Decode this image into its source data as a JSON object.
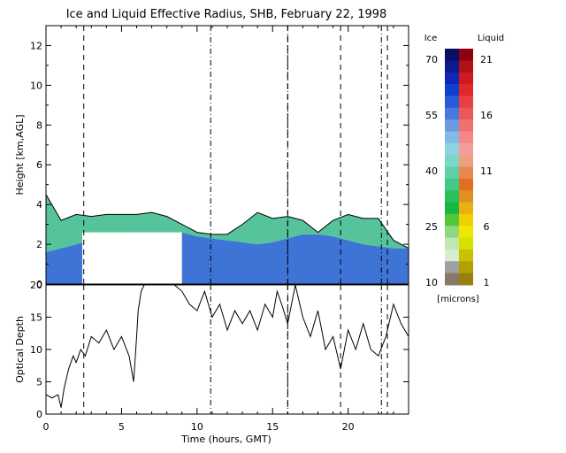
{
  "chart_data": [
    {
      "type": "heatmap",
      "title": "Ice and Liquid Effective Radius, SHB, February 22, 1998",
      "ylabel": "Height [km,AGL]",
      "xlim": [
        0,
        24
      ],
      "ylim": [
        0,
        13
      ],
      "y_ticks": [
        0,
        2,
        4,
        6,
        8,
        10,
        12
      ],
      "x_ticks": [
        0,
        5,
        10,
        15,
        20
      ],
      "dashed_time_markers": [
        2.5,
        16.0,
        19.5,
        22.6
      ],
      "dashdot_time_markers": [
        10.9,
        16.0,
        22.2
      ],
      "colorbar": {
        "ice_label": "Ice",
        "liquid_label": "Liquid",
        "units_label": "[microns]",
        "ice_ticks": [
          "70",
          "55",
          "40",
          "25",
          "10"
        ],
        "liquid_ticks": [
          "21",
          "16",
          "11",
          "6",
          "1"
        ],
        "ice_colors": [
          "#0a1060",
          "#0c1a90",
          "#0d28b4",
          "#1040d0",
          "#2a5ad8",
          "#4a78dc",
          "#6a9ae0",
          "#82bce4",
          "#8fd2e0",
          "#7ad8c8",
          "#5ed0a8",
          "#44c888",
          "#2ac060",
          "#18b840",
          "#50c838",
          "#90d880",
          "#c0e8b0",
          "#d8ecd0",
          "#a0a0a0",
          "#887868"
        ],
        "liquid_colors": [
          "#900010",
          "#b01018",
          "#d01820",
          "#e02828",
          "#e84040",
          "#ec5858",
          "#f07070",
          "#f48888",
          "#f49c9c",
          "#eca080",
          "#e88850",
          "#e07020",
          "#e09020",
          "#e8b010",
          "#f0d000",
          "#f0e800",
          "#d8e000",
          "#c8c000",
          "#b0a000",
          "#988010"
        ]
      },
      "cloud_base_km": [
        1.6,
        1.8,
        2.0,
        2.2,
        2.4,
        2.5,
        2.6,
        2.6,
        2.6,
        2.6,
        2.4,
        2.3,
        2.2,
        2.1,
        2.0,
        2.1,
        2.3,
        2.5,
        2.5,
        2.4,
        2.2,
        2.0,
        1.9,
        1.8,
        1.8
      ],
      "cloud_top_km": [
        4.5,
        3.2,
        3.5,
        3.4,
        3.5,
        3.5,
        3.5,
        3.6,
        3.4,
        3.0,
        2.6,
        2.5,
        2.5,
        3.0,
        3.6,
        3.3,
        3.4,
        3.2,
        2.6,
        3.2,
        3.5,
        3.3,
        3.3,
        2.2,
        1.8
      ],
      "no_data_region": {
        "x_start": 2.4,
        "x_end": 9.0,
        "y_top": 2.6
      }
    },
    {
      "type": "line",
      "ylabel": "Optical Depth",
      "xlabel": "Time (hours, GMT)",
      "xlim": [
        0,
        24
      ],
      "ylim": [
        0,
        20
      ],
      "y_ticks": [
        0,
        5,
        10,
        15,
        20
      ],
      "x_ticks": [
        0,
        5,
        10,
        15,
        20
      ],
      "x": [
        0.0,
        0.4,
        0.8,
        1.0,
        1.2,
        1.5,
        1.8,
        2.0,
        2.3,
        2.6,
        3.0,
        3.5,
        4.0,
        4.5,
        5.0,
        5.5,
        5.8,
        6.0,
        6.1,
        6.3,
        6.5,
        8.5,
        9.0,
        9.5,
        10.0,
        10.5,
        11.0,
        11.5,
        12.0,
        12.5,
        13.0,
        13.5,
        14.0,
        14.5,
        15.0,
        15.3,
        15.6,
        16.0,
        16.5,
        17.0,
        17.5,
        18.0,
        18.5,
        19.0,
        19.5,
        20.0,
        20.5,
        21.0,
        21.5,
        22.0,
        22.5,
        23.0,
        23.5,
        24.0
      ],
      "y": [
        3.0,
        2.5,
        3.0,
        1.0,
        4.0,
        7.0,
        9.0,
        8.0,
        10.0,
        9.0,
        12.0,
        11.0,
        13.0,
        10.0,
        12.0,
        9.0,
        5.0,
        12.0,
        16.0,
        19.0,
        20.0,
        20.0,
        19.0,
        17.0,
        16.0,
        19.0,
        15.0,
        17.0,
        13.0,
        16.0,
        14.0,
        16.0,
        13.0,
        17.0,
        15.0,
        19.0,
        17.0,
        14.0,
        20.0,
        15.0,
        12.0,
        16.0,
        10.0,
        12.0,
        7.0,
        13.0,
        10.0,
        14.0,
        10.0,
        9.0,
        12.0,
        17.0,
        14.0,
        12.0
      ]
    }
  ]
}
